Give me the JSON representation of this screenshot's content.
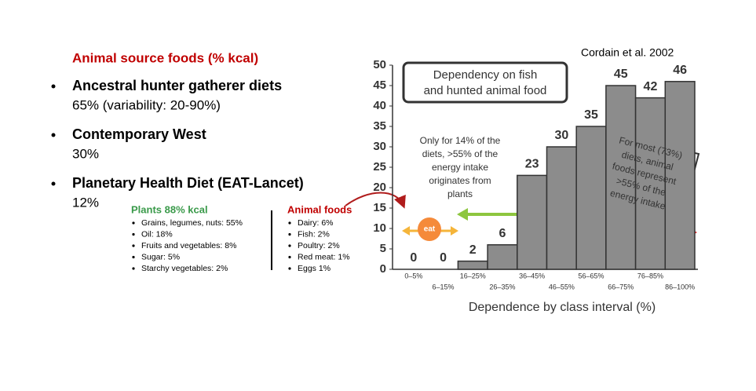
{
  "slide": {
    "heading": "Animal source foods (% kcal)",
    "bullets": [
      {
        "title": "Ancestral hunter gatherer diets",
        "detail": "65% (variability: 20-90%)"
      },
      {
        "title": "Contemporary West",
        "detail": "30%"
      },
      {
        "title": "Planetary Health Diet (EAT-Lancet)",
        "detail": "12%"
      }
    ],
    "citation": "Cordain et al. 2002",
    "plants": {
      "title": "Plants 88% kcal",
      "items": [
        "Grains, legumes, nuts: 55%",
        "Oil: 18%",
        "Fruits and vegetables: 8%",
        "Sugar: 5%",
        "Starchy vegetables: 2%"
      ]
    },
    "animal": {
      "title": "Animal foods",
      "items": [
        "Dairy: 6%",
        "Fish: 2%",
        "Poultry: 2%",
        "Red meat: 1%",
        "Eggs 1%"
      ]
    },
    "logo": "eat"
  },
  "chart_data": {
    "type": "bar",
    "categories": [
      "0–5%",
      "6–15%",
      "16–25%",
      "26–35%",
      "36–45%",
      "46–55%",
      "56–65%",
      "66–75%",
      "76–85%",
      "86–100%"
    ],
    "values": [
      0,
      0,
      2,
      6,
      23,
      30,
      35,
      45,
      42,
      46
    ],
    "color": "#8c8c8c",
    "ylim": [
      0,
      50
    ],
    "yticks": [
      0,
      5,
      10,
      15,
      20,
      25,
      30,
      35,
      40,
      45,
      50
    ],
    "x_label": "Dependence by class interval (%)",
    "annotations": [
      [
        "Dependency on fish",
        "and hunted animal food"
      ],
      [
        "Only for 14% of the",
        "diets, >55% of the",
        "energy intake",
        "originates from",
        "plants"
      ],
      [
        "For most (73%)",
        "diets, animal",
        "foods represent",
        ">55% of the",
        "energy intake"
      ]
    ]
  }
}
